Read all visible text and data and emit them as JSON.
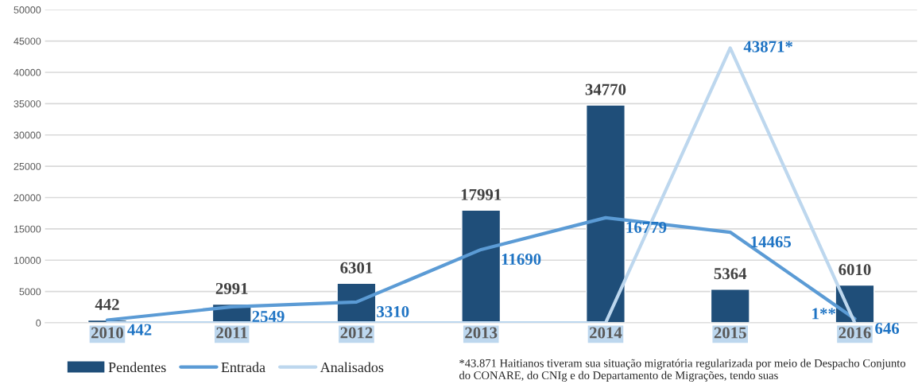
{
  "chart_data": {
    "type": "bar",
    "categories": [
      "2010",
      "2011",
      "2012",
      "2013",
      "2014",
      "2015",
      "2016"
    ],
    "series": [
      {
        "name": "Pendentes",
        "color": "#1f4e79",
        "values": [
          442,
          2991,
          6301,
          17991,
          34770,
          5364,
          6010
        ]
      },
      {
        "name": "Entrada",
        "type": "line",
        "color": "#5b9bd5",
        "values": [
          442,
          2549,
          3310,
          11690,
          16779,
          14465,
          646
        ]
      },
      {
        "name": "Analisados",
        "type": "line",
        "color": "#bdd7ee",
        "values": [
          0,
          0,
          0,
          0,
          0,
          43871,
          1
        ],
        "value_labels": [
          null,
          null,
          null,
          null,
          null,
          "43871*",
          "1**"
        ]
      }
    ],
    "data_labels": true,
    "ylim": [
      0,
      50000
    ],
    "yticks": [
      0,
      5000,
      10000,
      15000,
      20000,
      25000,
      30000,
      35000,
      40000,
      45000,
      50000
    ],
    "grid": "y",
    "legend": "bottom left",
    "marker": "none",
    "line_style": "solid",
    "annotations": [
      "*43.871 Haitianos tiveram sua situação migratória regularizada por meio de Despacho Conjunto do CONARE, do CNIg e do Departamento de Migrações, tendo suas"
    ]
  }
}
